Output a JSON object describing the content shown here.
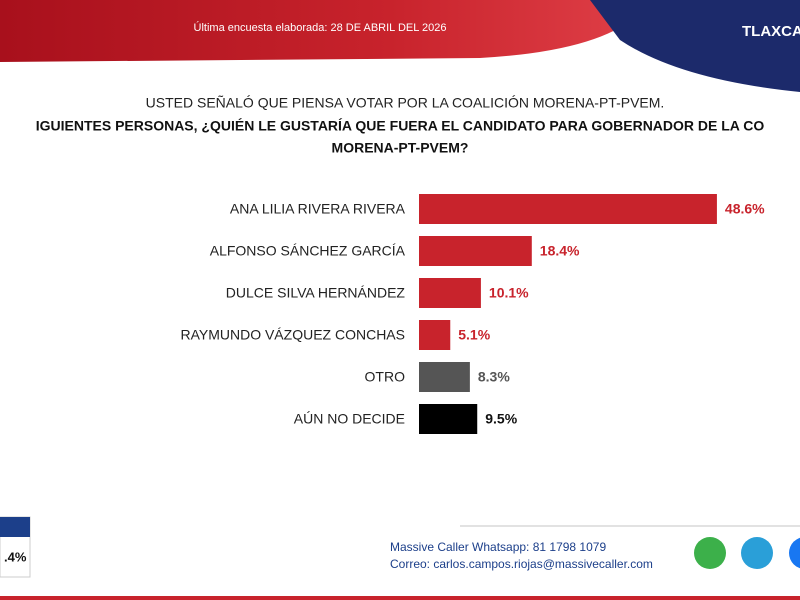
{
  "header": {
    "survey_date": "Última encuesta elaborada: 28 DE ABRIL DEL 2026",
    "region": "TLAXCA"
  },
  "question": [
    "USTED SEÑALÓ QUE PIENSA VOTAR POR LA COALICIÓN MORENA-PT-PVEM.",
    "IGUIENTES PERSONAS, ¿QUIÉN LE GUSTARÍA QUE FUERA EL CANDIDATO PARA GOBERNADOR DE LA CO",
    "MORENA-PT-PVEM?"
  ],
  "chart_data": {
    "type": "barh",
    "categories": [
      "ANA LILIA RIVERA RIVERA",
      "ALFONSO SÁNCHEZ GARCÍA",
      "DULCE SILVA HERNÁNDEZ",
      "RAYMUNDO VÁZQUEZ CONCHAS",
      "OTRO",
      "AÚN NO DECIDE"
    ],
    "values": [
      48.6,
      18.4,
      10.1,
      5.1,
      8.3,
      9.5
    ],
    "value_labels": [
      "48.6%",
      "18.4%",
      "10.1%",
      "5.1%",
      "8.3%",
      "9.5%"
    ],
    "colors": [
      "#c8232c",
      "#c8232c",
      "#c8232c",
      "#c8232c",
      "#555555",
      "#000000"
    ]
  },
  "side_box": {
    "value": ".4%"
  },
  "footer": {
    "whatsapp": "Massive Caller Whatsapp: 81 1798 1079",
    "email": "Correo: carlos.campos.riojas@massivecaller.com"
  }
}
